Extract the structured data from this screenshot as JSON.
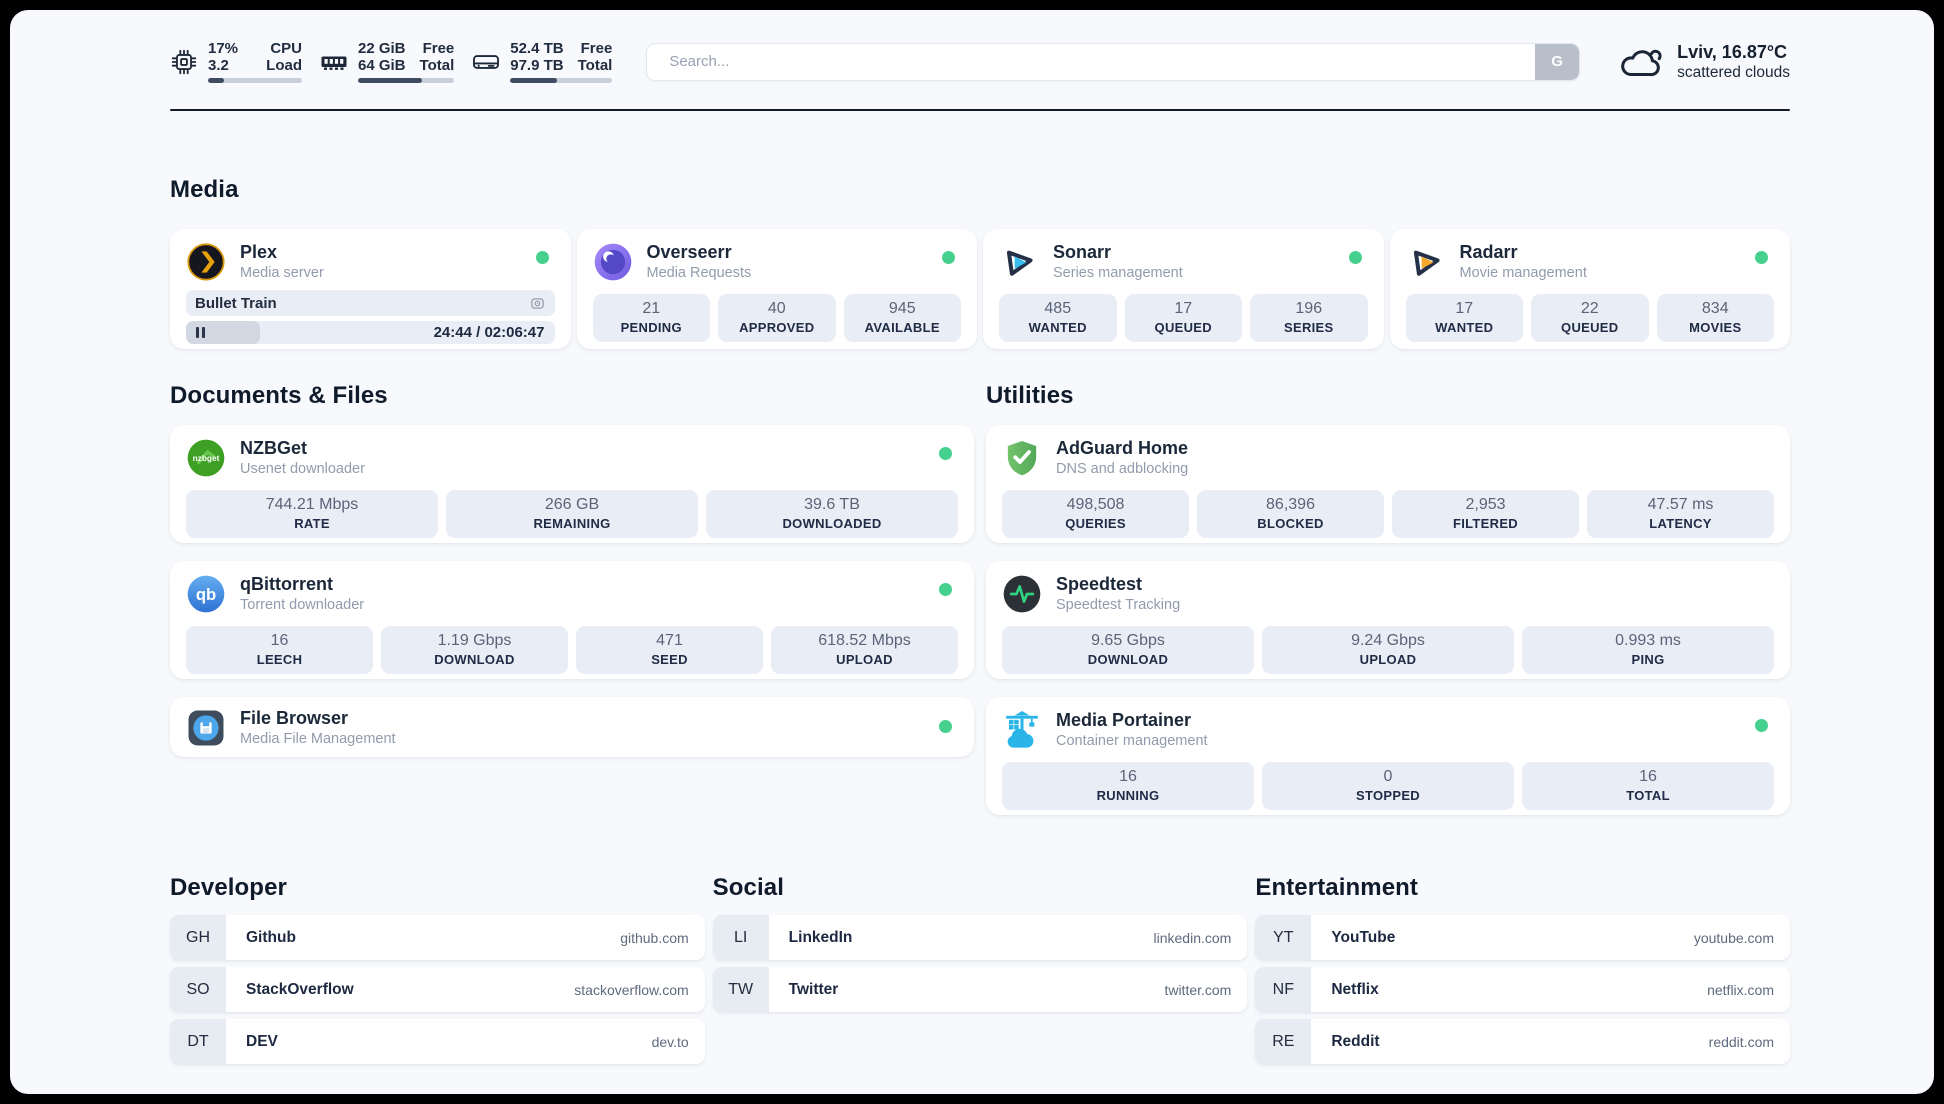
{
  "page": {
    "background": "#f7f9fc",
    "frame_color": "#000000",
    "accent_green": "#46d08d"
  },
  "topbar": {
    "resources": [
      {
        "icon": "cpu-icon",
        "values": [
          "17%",
          "3.2"
        ],
        "labels": [
          "CPU",
          "Load"
        ],
        "percent": 17
      },
      {
        "icon": "memory-icon",
        "values": [
          "22 GiB",
          "64 GiB"
        ],
        "labels": [
          "Free",
          "Total"
        ],
        "percent": 66
      },
      {
        "icon": "disk-icon",
        "values": [
          "52.4 TB",
          "97.9 TB"
        ],
        "labels": [
          "Free",
          "Total"
        ],
        "percent": 46
      }
    ],
    "search": {
      "placeholder": "Search...",
      "button_label": "G"
    },
    "weather": {
      "icon": "cloud-icon",
      "headline": "Lviv, 16.87°C",
      "condition": "scattered clouds"
    }
  },
  "sections": {
    "media": {
      "title": "Media",
      "cards": {
        "plex": {
          "title": "Plex",
          "subtitle": "Media server",
          "online": true,
          "now_playing": {
            "title": "Bullet Train",
            "time": "24:44 / 02:06:47",
            "progress_percent": 20
          }
        },
        "overseerr": {
          "title": "Overseerr",
          "subtitle": "Media Requests",
          "online": true,
          "stats": [
            {
              "value": "21",
              "label": "PENDING"
            },
            {
              "value": "40",
              "label": "APPROVED"
            },
            {
              "value": "945",
              "label": "AVAILABLE"
            }
          ]
        },
        "sonarr": {
          "title": "Sonarr",
          "subtitle": "Series management",
          "online": true,
          "stats": [
            {
              "value": "485",
              "label": "WANTED"
            },
            {
              "value": "17",
              "label": "QUEUED"
            },
            {
              "value": "196",
              "label": "SERIES"
            }
          ]
        },
        "radarr": {
          "title": "Radarr",
          "subtitle": "Movie management",
          "online": true,
          "stats": [
            {
              "value": "17",
              "label": "WANTED"
            },
            {
              "value": "22",
              "label": "QUEUED"
            },
            {
              "value": "834",
              "label": "MOVIES"
            }
          ]
        }
      }
    },
    "documents": {
      "title": "Documents & Files",
      "cards": {
        "nzbget": {
          "title": "NZBGet",
          "subtitle": "Usenet downloader",
          "online": true,
          "stats": [
            {
              "value": "744.21 Mbps",
              "label": "RATE"
            },
            {
              "value": "266 GB",
              "label": "REMAINING"
            },
            {
              "value": "39.6 TB",
              "label": "DOWNLOADED"
            }
          ]
        },
        "qbittorrent": {
          "title": "qBittorrent",
          "subtitle": "Torrent downloader",
          "online": true,
          "stats": [
            {
              "value": "16",
              "label": "LEECH"
            },
            {
              "value": "1.19 Gbps",
              "label": "DOWNLOAD"
            },
            {
              "value": "471",
              "label": "SEED"
            },
            {
              "value": "618.52 Mbps",
              "label": "UPLOAD"
            }
          ]
        },
        "filebrowser": {
          "title": "File Browser",
          "subtitle": "Media File Management",
          "online": true
        }
      }
    },
    "utilities": {
      "title": "Utilities",
      "cards": {
        "adguard": {
          "title": "AdGuard Home",
          "subtitle": "DNS and adblocking",
          "stats": [
            {
              "value": "498,508",
              "label": "QUERIES"
            },
            {
              "value": "86,396",
              "label": "BLOCKED"
            },
            {
              "value": "2,953",
              "label": "FILTERED"
            },
            {
              "value": "47.57 ms",
              "label": "LATENCY"
            }
          ]
        },
        "speedtest": {
          "title": "Speedtest",
          "subtitle": "Speedtest Tracking",
          "stats": [
            {
              "value": "9.65 Gbps",
              "label": "DOWNLOAD"
            },
            {
              "value": "9.24 Gbps",
              "label": "UPLOAD"
            },
            {
              "value": "0.993 ms",
              "label": "PING"
            }
          ]
        },
        "portainer": {
          "title": "Media Portainer",
          "subtitle": "Container management",
          "online": true,
          "stats": [
            {
              "value": "16",
              "label": "RUNNING"
            },
            {
              "value": "0",
              "label": "STOPPED"
            },
            {
              "value": "16",
              "label": "TOTAL"
            }
          ]
        }
      }
    }
  },
  "bookmarks": [
    {
      "title": "Developer",
      "items": [
        {
          "abbr": "GH",
          "name": "Github",
          "url": "github.com"
        },
        {
          "abbr": "SO",
          "name": "StackOverflow",
          "url": "stackoverflow.com"
        },
        {
          "abbr": "DT",
          "name": "DEV",
          "url": "dev.to"
        }
      ]
    },
    {
      "title": "Social",
      "items": [
        {
          "abbr": "LI",
          "name": "LinkedIn",
          "url": "linkedin.com"
        },
        {
          "abbr": "TW",
          "name": "Twitter",
          "url": "twitter.com"
        }
      ]
    },
    {
      "title": "Entertainment",
      "items": [
        {
          "abbr": "YT",
          "name": "YouTube",
          "url": "youtube.com"
        },
        {
          "abbr": "NF",
          "name": "Netflix",
          "url": "netflix.com"
        },
        {
          "abbr": "RE",
          "name": "Reddit",
          "url": "reddit.com"
        }
      ]
    }
  ]
}
